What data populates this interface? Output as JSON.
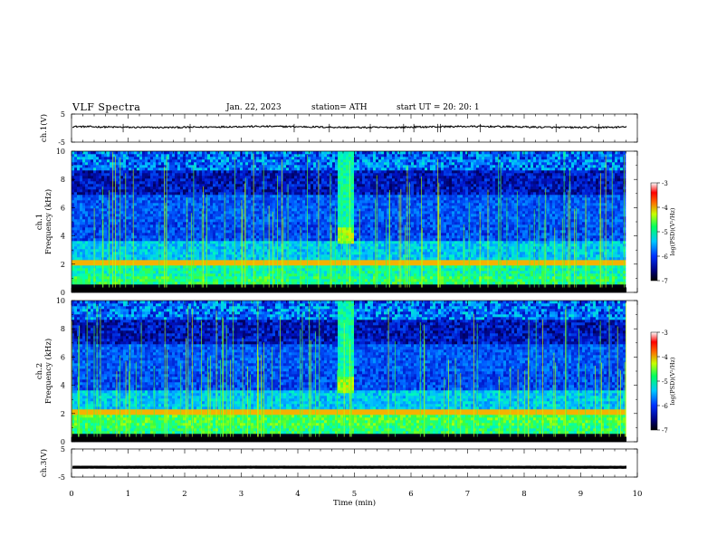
{
  "header": {
    "title": "VLF  Spectra",
    "date": "Jan. 22, 2023",
    "station": "station= ATH",
    "start_ut": "start  UT  =   20: 20: 1"
  },
  "chart_data": [
    {
      "type": "line",
      "panel": "ch1-voltage",
      "ylabel": "ch.1(V)",
      "ylim": [
        -5,
        5
      ],
      "yticks": [
        "5",
        "-5"
      ],
      "description_level": 0.4,
      "series": [
        {
          "values_mean": 0.4,
          "noise": 0.6
        }
      ]
    },
    {
      "type": "heatmap",
      "panel": "ch1-spectrogram",
      "ylabel": "ch.1\nFrequency (kHz)",
      "ylim": [
        0,
        10
      ],
      "yticks": [
        "0",
        "2",
        "4",
        "6",
        "8",
        "10"
      ],
      "colorbar": {
        "label": "log(PSD)(V²/Hz)",
        "range": [
          -7,
          -3
        ],
        "ticks": [
          "-3",
          "-4",
          "-5",
          "-6",
          "-7"
        ]
      }
    },
    {
      "type": "heatmap",
      "panel": "ch2-spectrogram",
      "ylabel": "ch.2\nFrequency (kHz)",
      "ylim": [
        0,
        10
      ],
      "yticks": [
        "0",
        "2",
        "4",
        "6",
        "8",
        "10"
      ],
      "colorbar": {
        "label": "log(PSD)(V²/Hz)",
        "range": [
          -7,
          -3
        ],
        "ticks": [
          "-3",
          "-4",
          "-5",
          "-6",
          "-7"
        ]
      }
    },
    {
      "type": "line",
      "panel": "ch3-voltage",
      "ylabel": "ch.3(V)",
      "ylim": [
        -5,
        5
      ],
      "yticks": [
        "5",
        "-5"
      ],
      "series": [
        {
          "values_mean": -1.5,
          "noise": 0.05
        }
      ]
    }
  ],
  "xaxis": {
    "label": "Time  (min)",
    "xlim": [
      0,
      10
    ],
    "ticks": [
      "0",
      "1",
      "2",
      "3",
      "4",
      "5",
      "6",
      "7",
      "8",
      "9",
      "10"
    ]
  },
  "colors": {
    "trace": "#000000",
    "background": "#ffffff",
    "spectrogram_low": "#000033",
    "spectrogram_high": "#ffffff"
  }
}
